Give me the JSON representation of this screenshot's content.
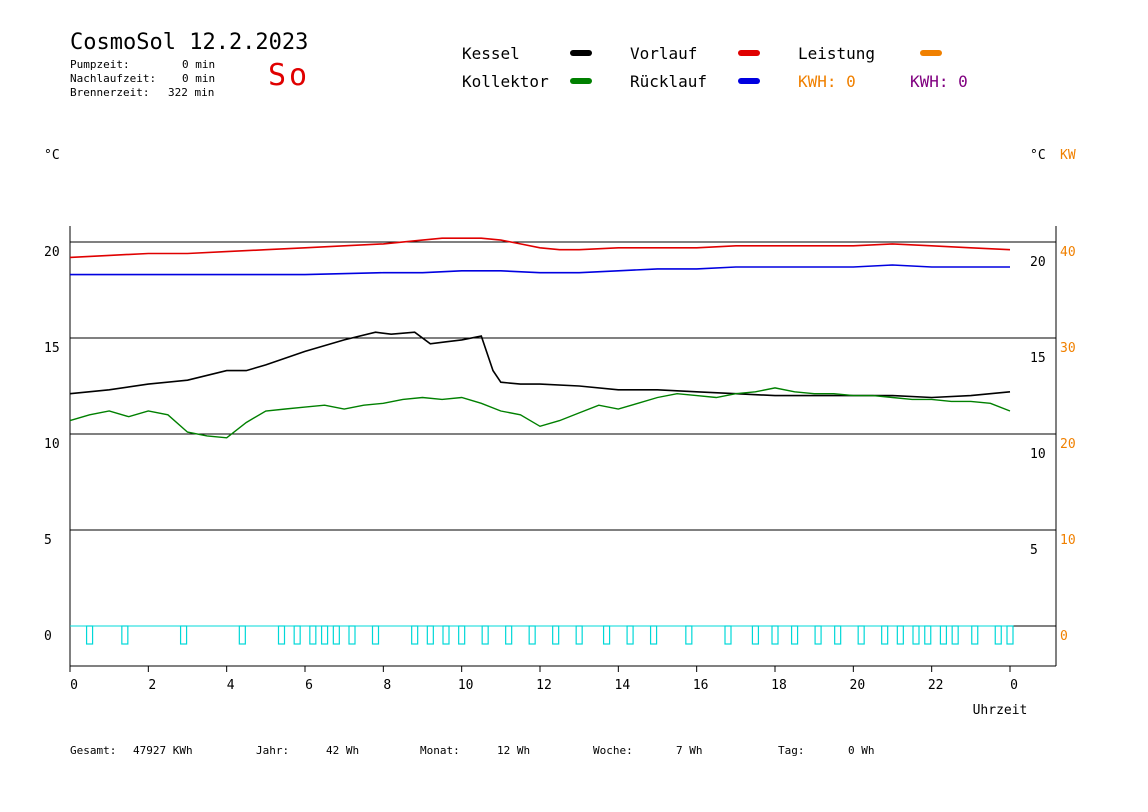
{
  "header": {
    "title": "CosmoSol 12.2.2023",
    "pump_label": "Pumpzeit:",
    "pump_value": "0 min",
    "after_label": "Nachlaufzeit:",
    "after_value": "0 min",
    "burner_label": "Brennerzeit:",
    "burner_value": "322 min",
    "weekday": "So"
  },
  "legend": {
    "kessel": "Kessel",
    "kollektor": "Kollektor",
    "vorlauf": "Vorlauf",
    "ruecklauf": "Rücklauf",
    "leistung": "Leistung",
    "kwh1": "KWH: 0",
    "kwh2": "KWH: 0"
  },
  "colors": {
    "kessel": "#000000",
    "kollektor": "#008000",
    "vorlauf": "#e00000",
    "ruecklauf": "#0000e0",
    "leistung": "#f08000",
    "kwh2": "#800080",
    "pump": "#00d8d8",
    "weekday": "#e00000"
  },
  "axes": {
    "left_unit": "°C",
    "right_unit_c": "°C",
    "right_unit_kw": "KW",
    "x_title": "Uhrzeit"
  },
  "footer": {
    "gesamt_label": "Gesamt:",
    "gesamt_value": "47927 KWh",
    "jahr_label": "Jahr:",
    "jahr_value": "42 Wh",
    "monat_label": "Monat:",
    "monat_value": "12 Wh",
    "woche_label": "Woche:",
    "woche_value": "7 Wh",
    "tag_label": "Tag:",
    "tag_value": "0 Wh"
  },
  "chart_data": {
    "type": "line",
    "xlabel": "Uhrzeit",
    "x_ticks": [
      "0",
      "2",
      "4",
      "6",
      "8",
      "10",
      "12",
      "14",
      "16",
      "18",
      "20",
      "22",
      "0"
    ],
    "xlim": [
      0,
      24
    ],
    "left_axis": {
      "label": "°C",
      "ticks": [
        0,
        5,
        10,
        15,
        20
      ],
      "ylim": [
        0,
        20
      ]
    },
    "right_axis_c": {
      "label": "°C",
      "ticks": [
        5,
        10,
        15,
        20
      ]
    },
    "right_axis_kw": {
      "label": "KW",
      "ticks": [
        0,
        10,
        20,
        30,
        40
      ],
      "ylim": [
        0,
        40
      ]
    },
    "grid": true,
    "series": [
      {
        "name": "Vorlauf",
        "color": "#e00000",
        "x": [
          0,
          1,
          2,
          3,
          4,
          5,
          6,
          7,
          8,
          9,
          9.5,
          10,
          10.5,
          11,
          11.5,
          12,
          12.5,
          13,
          14,
          15,
          16,
          17,
          18,
          19,
          20,
          21,
          22,
          23,
          24
        ],
        "y": [
          19.2,
          19.3,
          19.4,
          19.4,
          19.5,
          19.6,
          19.7,
          19.8,
          19.9,
          20.1,
          20.2,
          20.2,
          20.2,
          20.1,
          19.9,
          19.7,
          19.6,
          19.6,
          19.7,
          19.7,
          19.7,
          19.8,
          19.8,
          19.8,
          19.8,
          19.9,
          19.8,
          19.7,
          19.6
        ]
      },
      {
        "name": "Rücklauf",
        "color": "#0000e0",
        "x": [
          0,
          2,
          4,
          6,
          8,
          9,
          10,
          11,
          12,
          13,
          14,
          15,
          16,
          17,
          18,
          19,
          20,
          21,
          22,
          23,
          24
        ],
        "y": [
          18.3,
          18.3,
          18.3,
          18.3,
          18.4,
          18.4,
          18.5,
          18.5,
          18.4,
          18.4,
          18.5,
          18.6,
          18.6,
          18.7,
          18.7,
          18.7,
          18.7,
          18.8,
          18.7,
          18.7,
          18.7
        ]
      },
      {
        "name": "Kessel",
        "color": "#000000",
        "x": [
          0,
          1,
          2,
          3,
          4,
          4.5,
          5,
          6,
          7,
          7.8,
          8.2,
          8.8,
          9.2,
          9.6,
          10,
          10.5,
          10.8,
          11,
          11.5,
          12,
          13,
          14,
          15,
          16,
          17,
          18,
          19,
          20,
          21,
          22,
          23,
          24
        ],
        "y": [
          12.1,
          12.3,
          12.6,
          12.8,
          13.3,
          13.3,
          13.6,
          14.3,
          14.9,
          15.3,
          15.2,
          15.3,
          14.7,
          14.8,
          14.9,
          15.1,
          13.3,
          12.7,
          12.6,
          12.6,
          12.5,
          12.3,
          12.3,
          12.2,
          12.1,
          12.0,
          12.0,
          12.0,
          12.0,
          11.9,
          12.0,
          12.2
        ]
      },
      {
        "name": "Kollektor",
        "color": "#008000",
        "x": [
          0,
          0.5,
          1,
          1.5,
          2,
          2.5,
          3,
          3.5,
          4,
          4.5,
          5,
          5.5,
          6,
          6.5,
          7,
          7.5,
          8,
          8.5,
          9,
          9.5,
          10,
          10.5,
          11,
          11.5,
          12,
          12.5,
          13,
          13.5,
          14,
          14.5,
          15,
          15.5,
          16,
          16.5,
          17,
          17.5,
          18,
          18.5,
          19,
          19.5,
          20,
          20.5,
          21,
          21.5,
          22,
          22.5,
          23,
          23.5,
          24
        ],
        "y": [
          10.7,
          11.0,
          11.2,
          10.9,
          11.2,
          11.0,
          10.1,
          9.9,
          9.8,
          10.6,
          11.2,
          11.3,
          11.4,
          11.5,
          11.3,
          11.5,
          11.6,
          11.8,
          11.9,
          11.8,
          11.9,
          11.6,
          11.2,
          11.0,
          10.4,
          10.7,
          11.1,
          11.5,
          11.3,
          11.6,
          11.9,
          12.1,
          12.0,
          11.9,
          12.1,
          12.2,
          12.4,
          12.2,
          12.1,
          12.1,
          12.0,
          12.0,
          11.9,
          11.8,
          11.8,
          11.7,
          11.7,
          11.6,
          11.2
        ]
      }
    ],
    "pump_pulses_hours": [
      0.5,
      1.4,
      2.9,
      4.4,
      5.4,
      5.8,
      6.2,
      6.5,
      6.8,
      7.2,
      7.8,
      8.8,
      9.2,
      9.6,
      10.0,
      10.6,
      11.2,
      11.8,
      12.4,
      13.0,
      13.7,
      14.3,
      14.9,
      15.8,
      16.8,
      17.5,
      18.0,
      18.5,
      19.1,
      19.6,
      20.2,
      20.8,
      21.2,
      21.6,
      21.9,
      22.3,
      22.6,
      23.1,
      23.7,
      24.0
    ]
  }
}
